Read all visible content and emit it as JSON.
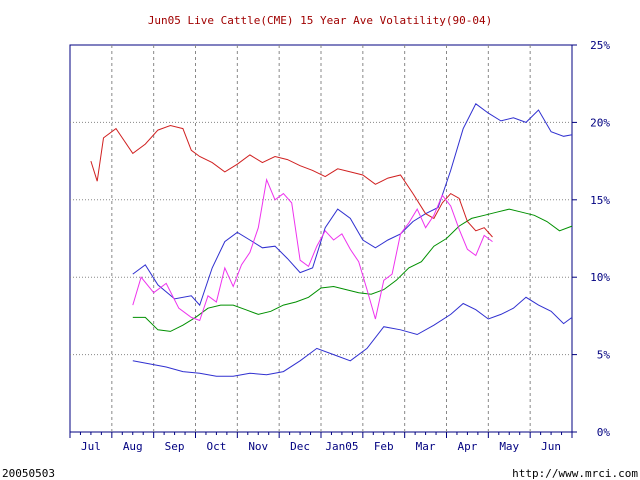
{
  "chart_data": {
    "type": "line",
    "title": "Jun05 Live Cattle(CME) 15 Year Ave Volatility(90-04)",
    "footer_left": "20050503",
    "footer_right": "http://www.mrci.com",
    "x_labels": [
      "Jul",
      "Aug",
      "Sep",
      "Oct",
      "Nov",
      "Dec",
      "Jan05",
      "Feb",
      "Mar",
      "Apr",
      "May",
      "Jun"
    ],
    "y_ticks": [
      0,
      5,
      10,
      15,
      20,
      25
    ],
    "y_tick_labels": [
      "0%",
      "5%",
      "10%",
      "15%",
      "20%",
      "25%"
    ],
    "ylim": [
      0,
      25
    ],
    "grid": true,
    "colors": {
      "title": "#a00000",
      "axis": "#000080",
      "grid": "#888888",
      "blue": "#3030d0",
      "green": "#009000",
      "red": "#d02020",
      "magenta": "#ee33ee"
    },
    "series": [
      {
        "color": "blue_upper",
        "x": [
          1.0,
          1.3,
          1.6,
          2.0,
          2.4,
          2.6,
          2.9,
          3.2,
          3.5,
          3.8,
          4.1,
          4.4,
          4.7,
          5.0,
          5.3,
          5.6,
          5.9,
          6.2,
          6.5,
          6.8,
          7.1,
          7.4,
          7.7,
          8.0,
          8.3,
          8.6,
          8.9,
          9.2,
          9.5,
          9.8,
          10.1,
          10.4,
          10.7,
          11.0,
          11.3,
          11.5
        ],
        "y": [
          10.2,
          10.8,
          9.5,
          8.6,
          8.8,
          8.2,
          10.6,
          12.3,
          12.9,
          12.4,
          11.9,
          12.0,
          11.2,
          10.3,
          10.6,
          13.2,
          14.4,
          13.8,
          12.4,
          11.9,
          12.4,
          12.8,
          13.6,
          14.1,
          14.5,
          16.9,
          19.6,
          21.2,
          20.6,
          20.1,
          20.3,
          20.0,
          20.8,
          19.4,
          19.1,
          19.2
        ]
      },
      {
        "color": "blue_lower",
        "x": [
          1.0,
          1.4,
          1.8,
          2.2,
          2.6,
          3.0,
          3.4,
          3.8,
          4.2,
          4.6,
          5.0,
          5.4,
          5.8,
          6.2,
          6.6,
          7.0,
          7.4,
          7.8,
          8.2,
          8.6,
          8.9,
          9.2,
          9.5,
          9.8,
          10.1,
          10.4,
          10.7,
          11.0,
          11.3,
          11.5
        ],
        "y": [
          4.6,
          4.4,
          4.2,
          3.9,
          3.8,
          3.6,
          3.6,
          3.8,
          3.7,
          3.9,
          4.6,
          5.4,
          5.0,
          4.6,
          5.4,
          6.8,
          6.6,
          6.3,
          6.9,
          7.6,
          8.3,
          7.9,
          7.3,
          7.6,
          8.0,
          8.7,
          8.2,
          7.8,
          7.0,
          7.4
        ]
      },
      {
        "color": "green",
        "x": [
          1.0,
          1.3,
          1.6,
          1.9,
          2.2,
          2.5,
          2.8,
          3.1,
          3.4,
          3.7,
          4.0,
          4.3,
          4.6,
          4.9,
          5.2,
          5.5,
          5.8,
          6.1,
          6.4,
          6.7,
          7.0,
          7.3,
          7.6,
          7.9,
          8.2,
          8.5,
          8.8,
          9.1,
          9.4,
          9.7,
          10.0,
          10.3,
          10.6,
          10.9,
          11.2,
          11.5
        ],
        "y": [
          7.4,
          7.4,
          6.6,
          6.5,
          6.9,
          7.4,
          8.0,
          8.2,
          8.2,
          7.9,
          7.6,
          7.8,
          8.2,
          8.4,
          8.7,
          9.3,
          9.4,
          9.2,
          9.0,
          8.9,
          9.2,
          9.8,
          10.6,
          11.0,
          12.0,
          12.5,
          13.3,
          13.8,
          14.0,
          14.2,
          14.4,
          14.2,
          14.0,
          13.6,
          13.0,
          13.3
        ]
      },
      {
        "color": "red",
        "x": [
          0.0,
          0.15,
          0.3,
          0.6,
          0.8,
          1.0,
          1.3,
          1.6,
          1.9,
          2.2,
          2.4,
          2.6,
          2.9,
          3.2,
          3.5,
          3.8,
          4.1,
          4.4,
          4.7,
          5.0,
          5.3,
          5.6,
          5.9,
          6.2,
          6.5,
          6.8,
          7.1,
          7.4,
          7.7,
          8.0,
          8.2,
          8.4,
          8.6,
          8.8,
          9.0,
          9.2,
          9.4,
          9.6
        ],
        "y": [
          17.5,
          16.2,
          19.0,
          19.6,
          18.8,
          18.0,
          18.6,
          19.5,
          19.8,
          19.6,
          18.2,
          17.8,
          17.4,
          16.8,
          17.3,
          17.9,
          17.4,
          17.8,
          17.6,
          17.2,
          16.9,
          16.5,
          17.0,
          16.8,
          16.6,
          16.0,
          16.4,
          16.6,
          15.4,
          14.1,
          13.8,
          14.8,
          15.4,
          15.1,
          13.6,
          13.0,
          13.2,
          12.6
        ]
      },
      {
        "color": "magenta",
        "x": [
          1.0,
          1.2,
          1.5,
          1.8,
          2.1,
          2.4,
          2.6,
          2.8,
          3.0,
          3.2,
          3.4,
          3.6,
          3.8,
          4.0,
          4.2,
          4.4,
          4.6,
          4.8,
          5.0,
          5.2,
          5.4,
          5.6,
          5.8,
          6.0,
          6.2,
          6.4,
          6.6,
          6.8,
          7.0,
          7.2,
          7.4,
          7.6,
          7.8,
          8.0,
          8.2,
          8.4,
          8.6,
          8.8,
          9.0,
          9.2,
          9.4,
          9.6
        ],
        "y": [
          8.2,
          10.0,
          9.0,
          9.6,
          8.0,
          7.4,
          7.2,
          8.8,
          8.4,
          10.6,
          9.4,
          10.8,
          11.6,
          13.2,
          16.3,
          15.0,
          15.4,
          14.8,
          11.1,
          10.7,
          12.0,
          13.0,
          12.4,
          12.8,
          11.8,
          11.0,
          9.2,
          7.3,
          9.8,
          10.2,
          12.8,
          13.5,
          14.4,
          13.2,
          14.0,
          15.3,
          14.6,
          13.1,
          11.8,
          11.4,
          12.7,
          12.3
        ]
      }
    ]
  }
}
